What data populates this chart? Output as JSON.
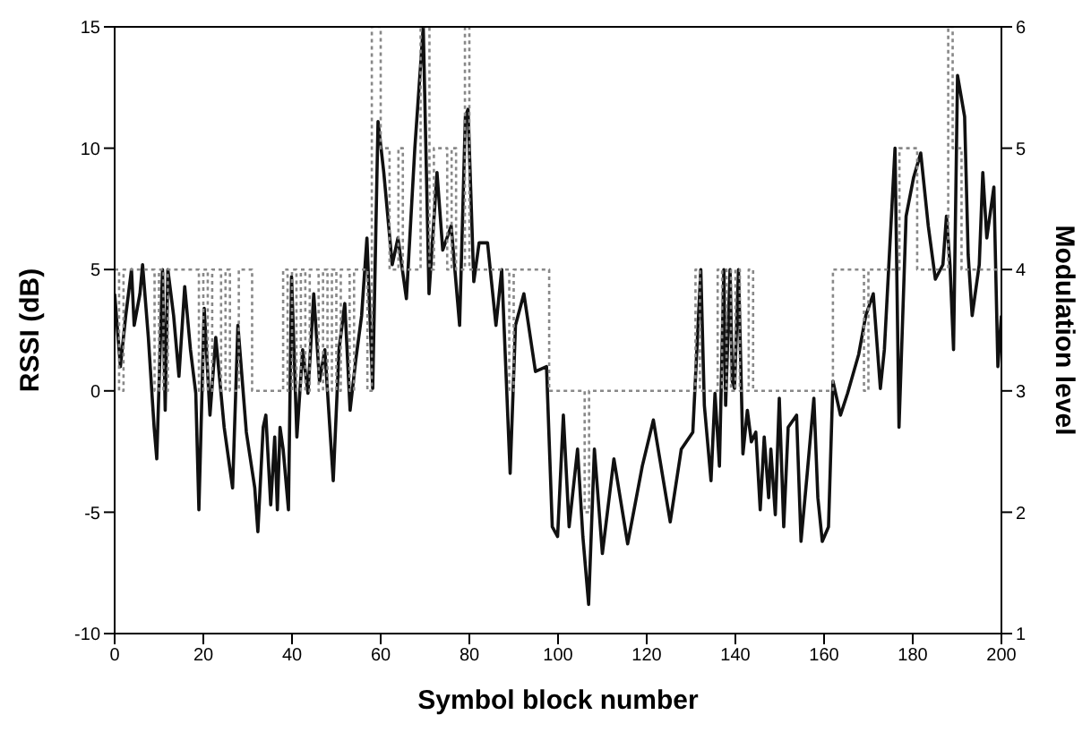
{
  "chart_data": {
    "type": "line",
    "xlabel": "Symbol block number",
    "ylabel": "RSSI (dB)",
    "y2label": "Modulation level",
    "xlim": [
      0,
      200
    ],
    "xticks": [
      0,
      20,
      40,
      60,
      80,
      100,
      120,
      140,
      160,
      180,
      200
    ],
    "ylim": [
      -10,
      15
    ],
    "yticks": [
      -10,
      -5,
      0,
      5,
      10,
      15
    ],
    "y2lim": [
      1,
      6
    ],
    "y2ticks": [
      1,
      2,
      3,
      4,
      5,
      6
    ],
    "series": [
      {
        "color": "#111111",
        "line_style": "solid",
        "x": [
          0,
          1.3,
          2.5,
          3.8,
          4.4,
          5.7,
          6.3,
          7.6,
          8.9,
          9.5,
          10.8,
          11.4,
          12,
          13.3,
          14.5,
          15.8,
          17.1,
          18.3,
          19,
          20.2,
          21.5,
          22.8,
          24.7,
          26.6,
          27.8,
          29.7,
          31.6,
          32.3,
          33.5,
          34.1,
          35.2,
          36.1,
          36.7,
          37.3,
          38,
          39.2,
          39.9,
          41.1,
          42.4,
          43.6,
          44.9,
          46.2,
          47.4,
          49.3,
          50.6,
          51.9,
          53.1,
          54.4,
          55.7,
          56.9,
          58.2,
          59.4,
          60.7,
          62.6,
          63.9,
          65.8,
          67.7,
          69.6,
          70.9,
          72.7,
          74,
          75.9,
          77.8,
          79.1,
          79.7,
          81,
          82.2,
          84.1,
          86,
          87.3,
          89.2,
          90.4,
          92.3,
          94.9,
          97.4,
          98.7,
          99.9,
          101.2,
          102.5,
          104.4,
          105.6,
          106.9,
          108.2,
          110,
          112.6,
          115.7,
          119,
          121.5,
          125.3,
          127.8,
          130.4,
          132.2,
          133,
          134.5,
          135.4,
          136.4,
          137.4,
          137.8,
          138.8,
          139.3,
          139.8,
          140.7,
          141.7,
          142.7,
          143.6,
          144.6,
          145.6,
          146.5,
          147.5,
          148,
          149,
          149.9,
          150.9,
          151.9,
          153.8,
          154.8,
          156.2,
          157.7,
          158.6,
          159.6,
          161,
          162,
          163.7,
          165.3,
          167.8,
          169.4,
          171.1,
          172.7,
          173.6,
          176,
          176.9,
          178.5,
          180.2,
          181.8,
          183.5,
          185.1,
          186.8,
          187.6,
          188.4,
          189.2,
          190.1,
          191.7,
          192.5,
          193.4,
          195,
          195.8,
          196.7,
          198.3,
          199.2,
          200
        ],
        "values": [
          4,
          1,
          3.1,
          5,
          2.7,
          4,
          5.2,
          2.2,
          -1.5,
          -2.8,
          5,
          -0.8,
          5,
          3.1,
          0.6,
          4.3,
          1.7,
          -0.1,
          -4.9,
          3.4,
          -1,
          2.2,
          -1.5,
          -4,
          2.7,
          -1.7,
          -4,
          -5.8,
          -1.5,
          -1,
          -4.7,
          -1.9,
          -4.9,
          -1.5,
          -2.4,
          -4.9,
          4.7,
          -1.9,
          1.7,
          -0.1,
          4,
          0.4,
          1.7,
          -3.7,
          1.7,
          3.6,
          -0.8,
          1.3,
          3.1,
          6.3,
          0.1,
          11.1,
          9,
          5.2,
          6.3,
          3.8,
          10,
          15,
          4,
          9,
          5.8,
          6.8,
          2.7,
          11.3,
          11.6,
          4.5,
          6.1,
          6.1,
          2.7,
          5,
          -3.4,
          2.7,
          4,
          0.8,
          1,
          -5.6,
          -6,
          -1,
          -5.6,
          -2.4,
          -6,
          -8.8,
          -2.4,
          -6.7,
          -2.8,
          -6.3,
          -3.1,
          -1.2,
          -5.4,
          -2.4,
          -1.7,
          5,
          -0.6,
          -3.7,
          -0.1,
          -3.1,
          5,
          -0.6,
          5,
          0.4,
          0.1,
          5,
          -2.6,
          -0.8,
          -2.1,
          -1.7,
          -4.9,
          -1.9,
          -4.4,
          -2.4,
          -5.1,
          -0.3,
          -5.6,
          -1.5,
          -1,
          -6.2,
          -3.4,
          -0.3,
          -4.4,
          -6.2,
          -5.6,
          0.4,
          -1,
          -0.1,
          1.5,
          3.1,
          4,
          0.1,
          1.7,
          10,
          -1.5,
          7.2,
          8.8,
          9.8,
          6.8,
          4.6,
          5.2,
          7.2,
          5.2,
          1.7,
          13,
          11.3,
          5.6,
          3.1,
          5.2,
          9,
          6.3,
          8.4,
          1,
          3.1
        ]
      },
      {
        "type": "step",
        "axis": "y2",
        "color": "#888888",
        "line_style": "dotted",
        "x": [
          0,
          1,
          2,
          9,
          10,
          11,
          12,
          19,
          20,
          21,
          22,
          24,
          25,
          26,
          28,
          31,
          38,
          39,
          40,
          41,
          42,
          43,
          44,
          46,
          47,
          48,
          49,
          50,
          51,
          53,
          54,
          57,
          58,
          60,
          62,
          64,
          65,
          69,
          71,
          72,
          75,
          76,
          77,
          79,
          80,
          89,
          90,
          98,
          106,
          107,
          131,
          132,
          136,
          137,
          138,
          139,
          140,
          141,
          143,
          144,
          162,
          169,
          170,
          177,
          181,
          188,
          189,
          191,
          200
        ],
        "values": [
          4,
          3,
          4,
          3,
          4,
          3,
          4,
          3,
          4,
          3,
          4,
          3,
          4,
          3,
          4,
          3,
          4,
          3,
          4,
          3,
          4,
          3,
          4,
          3,
          4,
          3,
          4,
          3,
          4,
          3,
          4,
          3,
          6,
          5,
          4,
          5,
          4,
          6,
          4,
          5,
          4,
          5,
          4,
          6,
          4,
          3,
          4,
          3,
          2,
          3,
          4,
          3,
          4,
          3,
          4,
          3,
          4,
          3,
          4,
          3,
          4,
          3,
          4,
          5,
          4,
          6,
          5,
          4,
          4
        ]
      }
    ]
  }
}
